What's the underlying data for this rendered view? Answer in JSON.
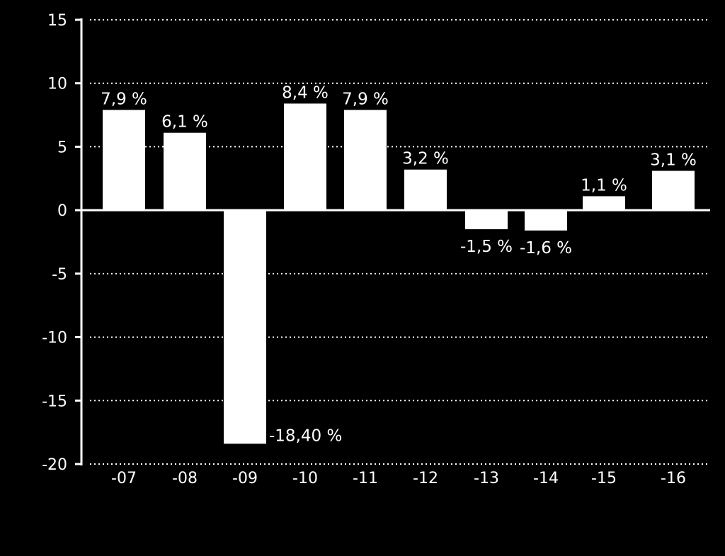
{
  "chart_data": {
    "type": "bar",
    "title": "",
    "xlabel": "",
    "ylabel": "",
    "categories": [
      "-07",
      "-08",
      "-09",
      "-10",
      "-11",
      "-12",
      "-13",
      "-14",
      "-15",
      "-16"
    ],
    "values": [
      7.9,
      6.1,
      -18.4,
      8.4,
      7.9,
      3.2,
      -1.5,
      -1.6,
      1.1,
      3.1
    ],
    "data_labels": [
      "7,9 %",
      "6,1 %",
      "-18,40 %",
      "8,4 %",
      "7,9 %",
      "3,2 %",
      "-1,5 %",
      "-1,6 %",
      "1,1 %",
      "3,1 %"
    ],
    "ylim": [
      -20,
      15
    ],
    "yticks": [
      15,
      10,
      5,
      0,
      -5,
      -10,
      -15,
      -20
    ],
    "ytick_labels": [
      "15",
      "10",
      "5",
      "0",
      "-5",
      "-10",
      "-15",
      "-20"
    ],
    "grid": "horizontal dotted",
    "legend": "none",
    "colors": {
      "background": "#000000",
      "bar": "#ffffff",
      "text": "#ffffff",
      "axis": "#ffffff",
      "grid": "#ffffff"
    }
  }
}
